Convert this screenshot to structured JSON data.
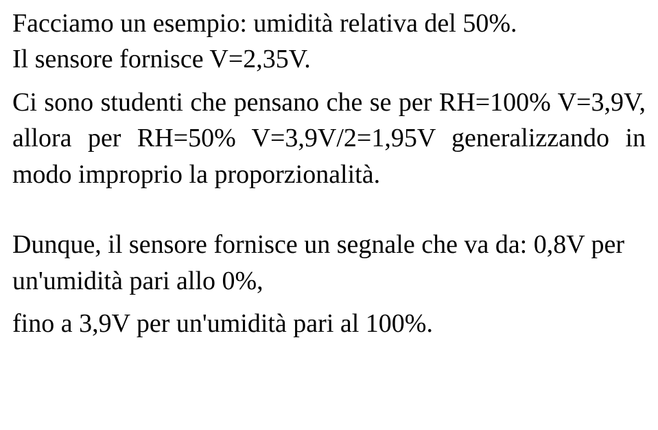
{
  "text": {
    "p1_l1": "Facciamo un esempio: umidità relativa del 50%.",
    "p1_l2": "Il sensore fornisce V=2,35V.",
    "p2": "Ci sono studenti che pensano che se per RH=100% V=3,9V, allora per RH=50% V=3,9V/2=1,95V generalizzando in modo improprio la proporzionalità.",
    "p3": "Dunque, il sensore fornisce un segnale che va da: 0,8V per un'umidità pari allo 0%,",
    "p4": "fino a 3,9V per un'umidità pari al 100%."
  },
  "style": {
    "font_family": "Times New Roman",
    "font_size_pt": 28,
    "text_color": "#000000",
    "background_color": "#ffffff",
    "line_height": 1.38
  }
}
